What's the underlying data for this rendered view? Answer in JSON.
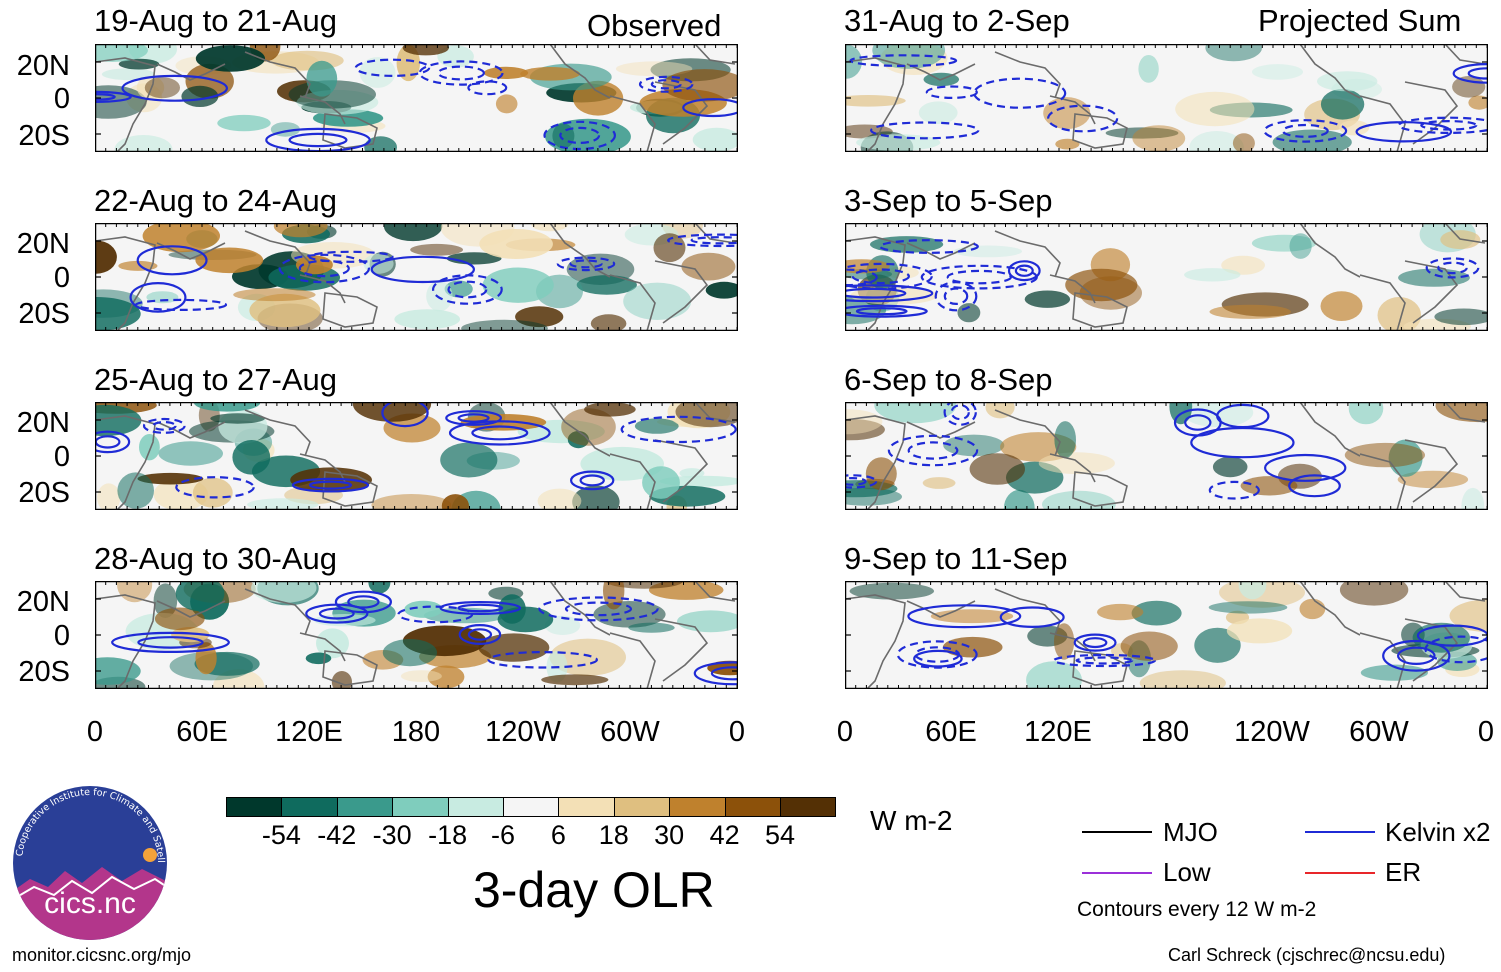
{
  "observed_header": "Observed",
  "projected_header": "Projected Sum",
  "observed_panels": [
    {
      "title": "19-Aug to 21-Aug"
    },
    {
      "title": "22-Aug to 24-Aug"
    },
    {
      "title": "25-Aug to 27-Aug"
    },
    {
      "title": "28-Aug to 30-Aug"
    }
  ],
  "projected_panels": [
    {
      "title": "31-Aug to 2-Sep"
    },
    {
      "title": "3-Sep to 5-Sep"
    },
    {
      "title": "6-Sep to 8-Sep"
    },
    {
      "title": "9-Sep to 11-Sep"
    }
  ],
  "lat_labels": [
    "20N",
    "0",
    "20S"
  ],
  "lon_labels": [
    "0",
    "60E",
    "120E",
    "180",
    "120W",
    "60W",
    "0"
  ],
  "colorbar": {
    "units": "W m-2",
    "labels": [
      "-54",
      "-42",
      "-30",
      "-18",
      "-6",
      "6",
      "18",
      "30",
      "42",
      "54"
    ],
    "colors": [
      "#00382c",
      "#0f6b5e",
      "#3a9a8c",
      "#7fcdbd",
      "#c8ebe1",
      "#f5f5f5",
      "#f3e0b6",
      "#dfbf80",
      "#bf812d",
      "#8c510a",
      "#543005"
    ]
  },
  "main_title": "3-day OLR",
  "legend": {
    "items": [
      {
        "label": "MJO",
        "color": "#000000"
      },
      {
        "label": "Kelvin x2",
        "color": "#1f2bd6"
      },
      {
        "label": "Low",
        "color": "#9b30d9"
      },
      {
        "label": "ER",
        "color": "#e8262a"
      }
    ],
    "contours_note": "Contours every 12 W m-2"
  },
  "logo_text": "cics.nc",
  "logo_ring_text": "Cooperative Institute for Climate and Satellites",
  "footer_left": "monitor.cicsnc.org/mjo",
  "footer_right": "Carl Schreck (cjschrec@ncsu.edu)"
}
